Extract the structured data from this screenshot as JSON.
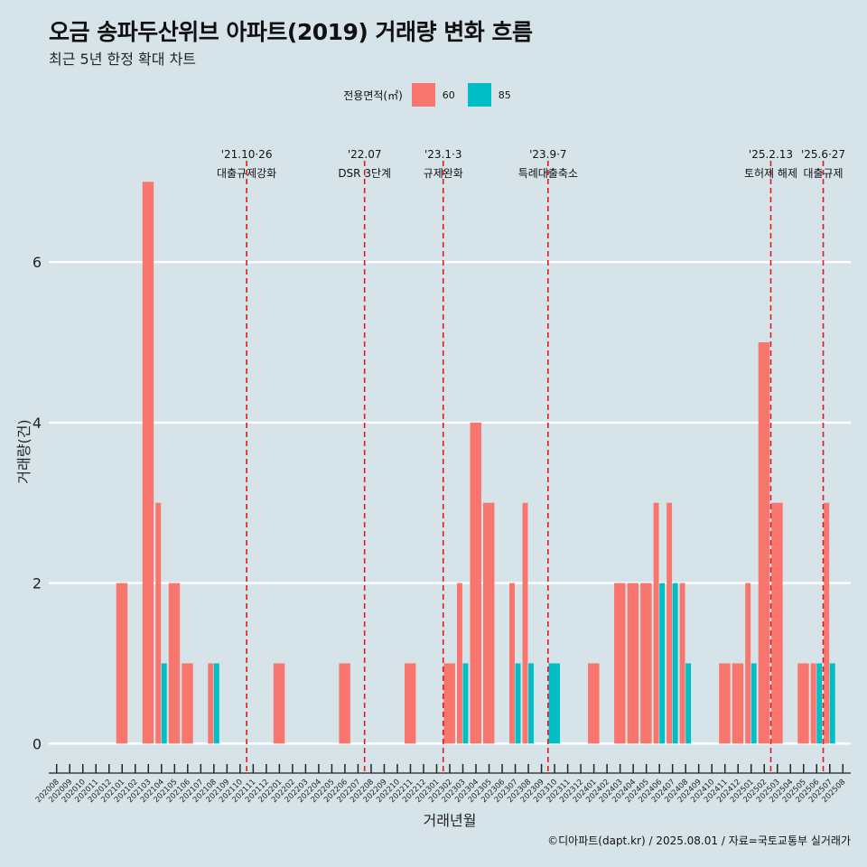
{
  "header": {
    "title": "오금 송파두산위브 아파트(2019) 거래량 변화 흐름",
    "subtitle": "최근 5년 한정 확대 차트"
  },
  "legend": {
    "title": "전용면적(㎡)",
    "items": [
      {
        "label": "60",
        "color": "#f8766d"
      },
      {
        "label": "85",
        "color": "#00bfc4"
      }
    ]
  },
  "caption": "©디아파트(dapt.kr) / 2025.08.01 / 자료=국토교통부 실거래가",
  "chart_data": {
    "type": "bar",
    "xlabel": "거래년월",
    "ylabel": "거래량(건)",
    "ylim": [
      -0.3,
      7.6
    ],
    "yticks": [
      0,
      2,
      4,
      6
    ],
    "grid": true,
    "legend_position": "top",
    "categories": [
      "202008",
      "202009",
      "202010",
      "202011",
      "202012",
      "202101",
      "202102",
      "202103",
      "202104",
      "202105",
      "202106",
      "202107",
      "202108",
      "202109",
      "202110",
      "202111",
      "202112",
      "202201",
      "202202",
      "202203",
      "202204",
      "202205",
      "202206",
      "202207",
      "202208",
      "202209",
      "202210",
      "202211",
      "202212",
      "202301",
      "202302",
      "202303",
      "202304",
      "202305",
      "202306",
      "202307",
      "202308",
      "202309",
      "202310",
      "202311",
      "202312",
      "202401",
      "202402",
      "202403",
      "202404",
      "202405",
      "202406",
      "202407",
      "202408",
      "202409",
      "202410",
      "202411",
      "202412",
      "202501",
      "202502",
      "202503",
      "202504",
      "202505",
      "202506",
      "202507",
      "202508"
    ],
    "series": [
      {
        "name": "60",
        "color": "#f8766d",
        "values": [
          0,
          0,
          0,
          0,
          0,
          2,
          0,
          7,
          3,
          2,
          1,
          0,
          1,
          0,
          0,
          0,
          0,
          1,
          0,
          0,
          0,
          0,
          1,
          0,
          0,
          0,
          0,
          1,
          0,
          0,
          1,
          2,
          4,
          3,
          0,
          2,
          3,
          0,
          0,
          0,
          0,
          1,
          0,
          2,
          2,
          2,
          3,
          3,
          2,
          0,
          0,
          1,
          1,
          2,
          5,
          3,
          0,
          1,
          1,
          3,
          0
        ]
      },
      {
        "name": "85",
        "color": "#00bfc4",
        "values": [
          0,
          0,
          0,
          0,
          0,
          0,
          0,
          0,
          1,
          0,
          0,
          0,
          1,
          0,
          0,
          0,
          0,
          0,
          0,
          0,
          0,
          0,
          0,
          0,
          0,
          0,
          0,
          0,
          0,
          0,
          0,
          1,
          0,
          0,
          0,
          1,
          1,
          0,
          1,
          0,
          0,
          0,
          0,
          0,
          0,
          0,
          2,
          2,
          1,
          0,
          0,
          0,
          0,
          1,
          0,
          0,
          0,
          0,
          1,
          1,
          0
        ]
      }
    ],
    "annotations": [
      {
        "x": "202110",
        "date": "'21.10·26",
        "label": "대출규제강화"
      },
      {
        "x": "202207",
        "date": "'22.07",
        "label": "DSR 3단계"
      },
      {
        "x": "202301",
        "date": "'23.1·3",
        "label": "규제완화"
      },
      {
        "x": "202309",
        "date": "'23.9·7",
        "label": "특례대출축소"
      },
      {
        "x": "202502",
        "date": "'25.2.13",
        "label": "토허제 해제"
      },
      {
        "x": "202506",
        "date": "'25.6·27",
        "label": "대출규제"
      }
    ]
  }
}
